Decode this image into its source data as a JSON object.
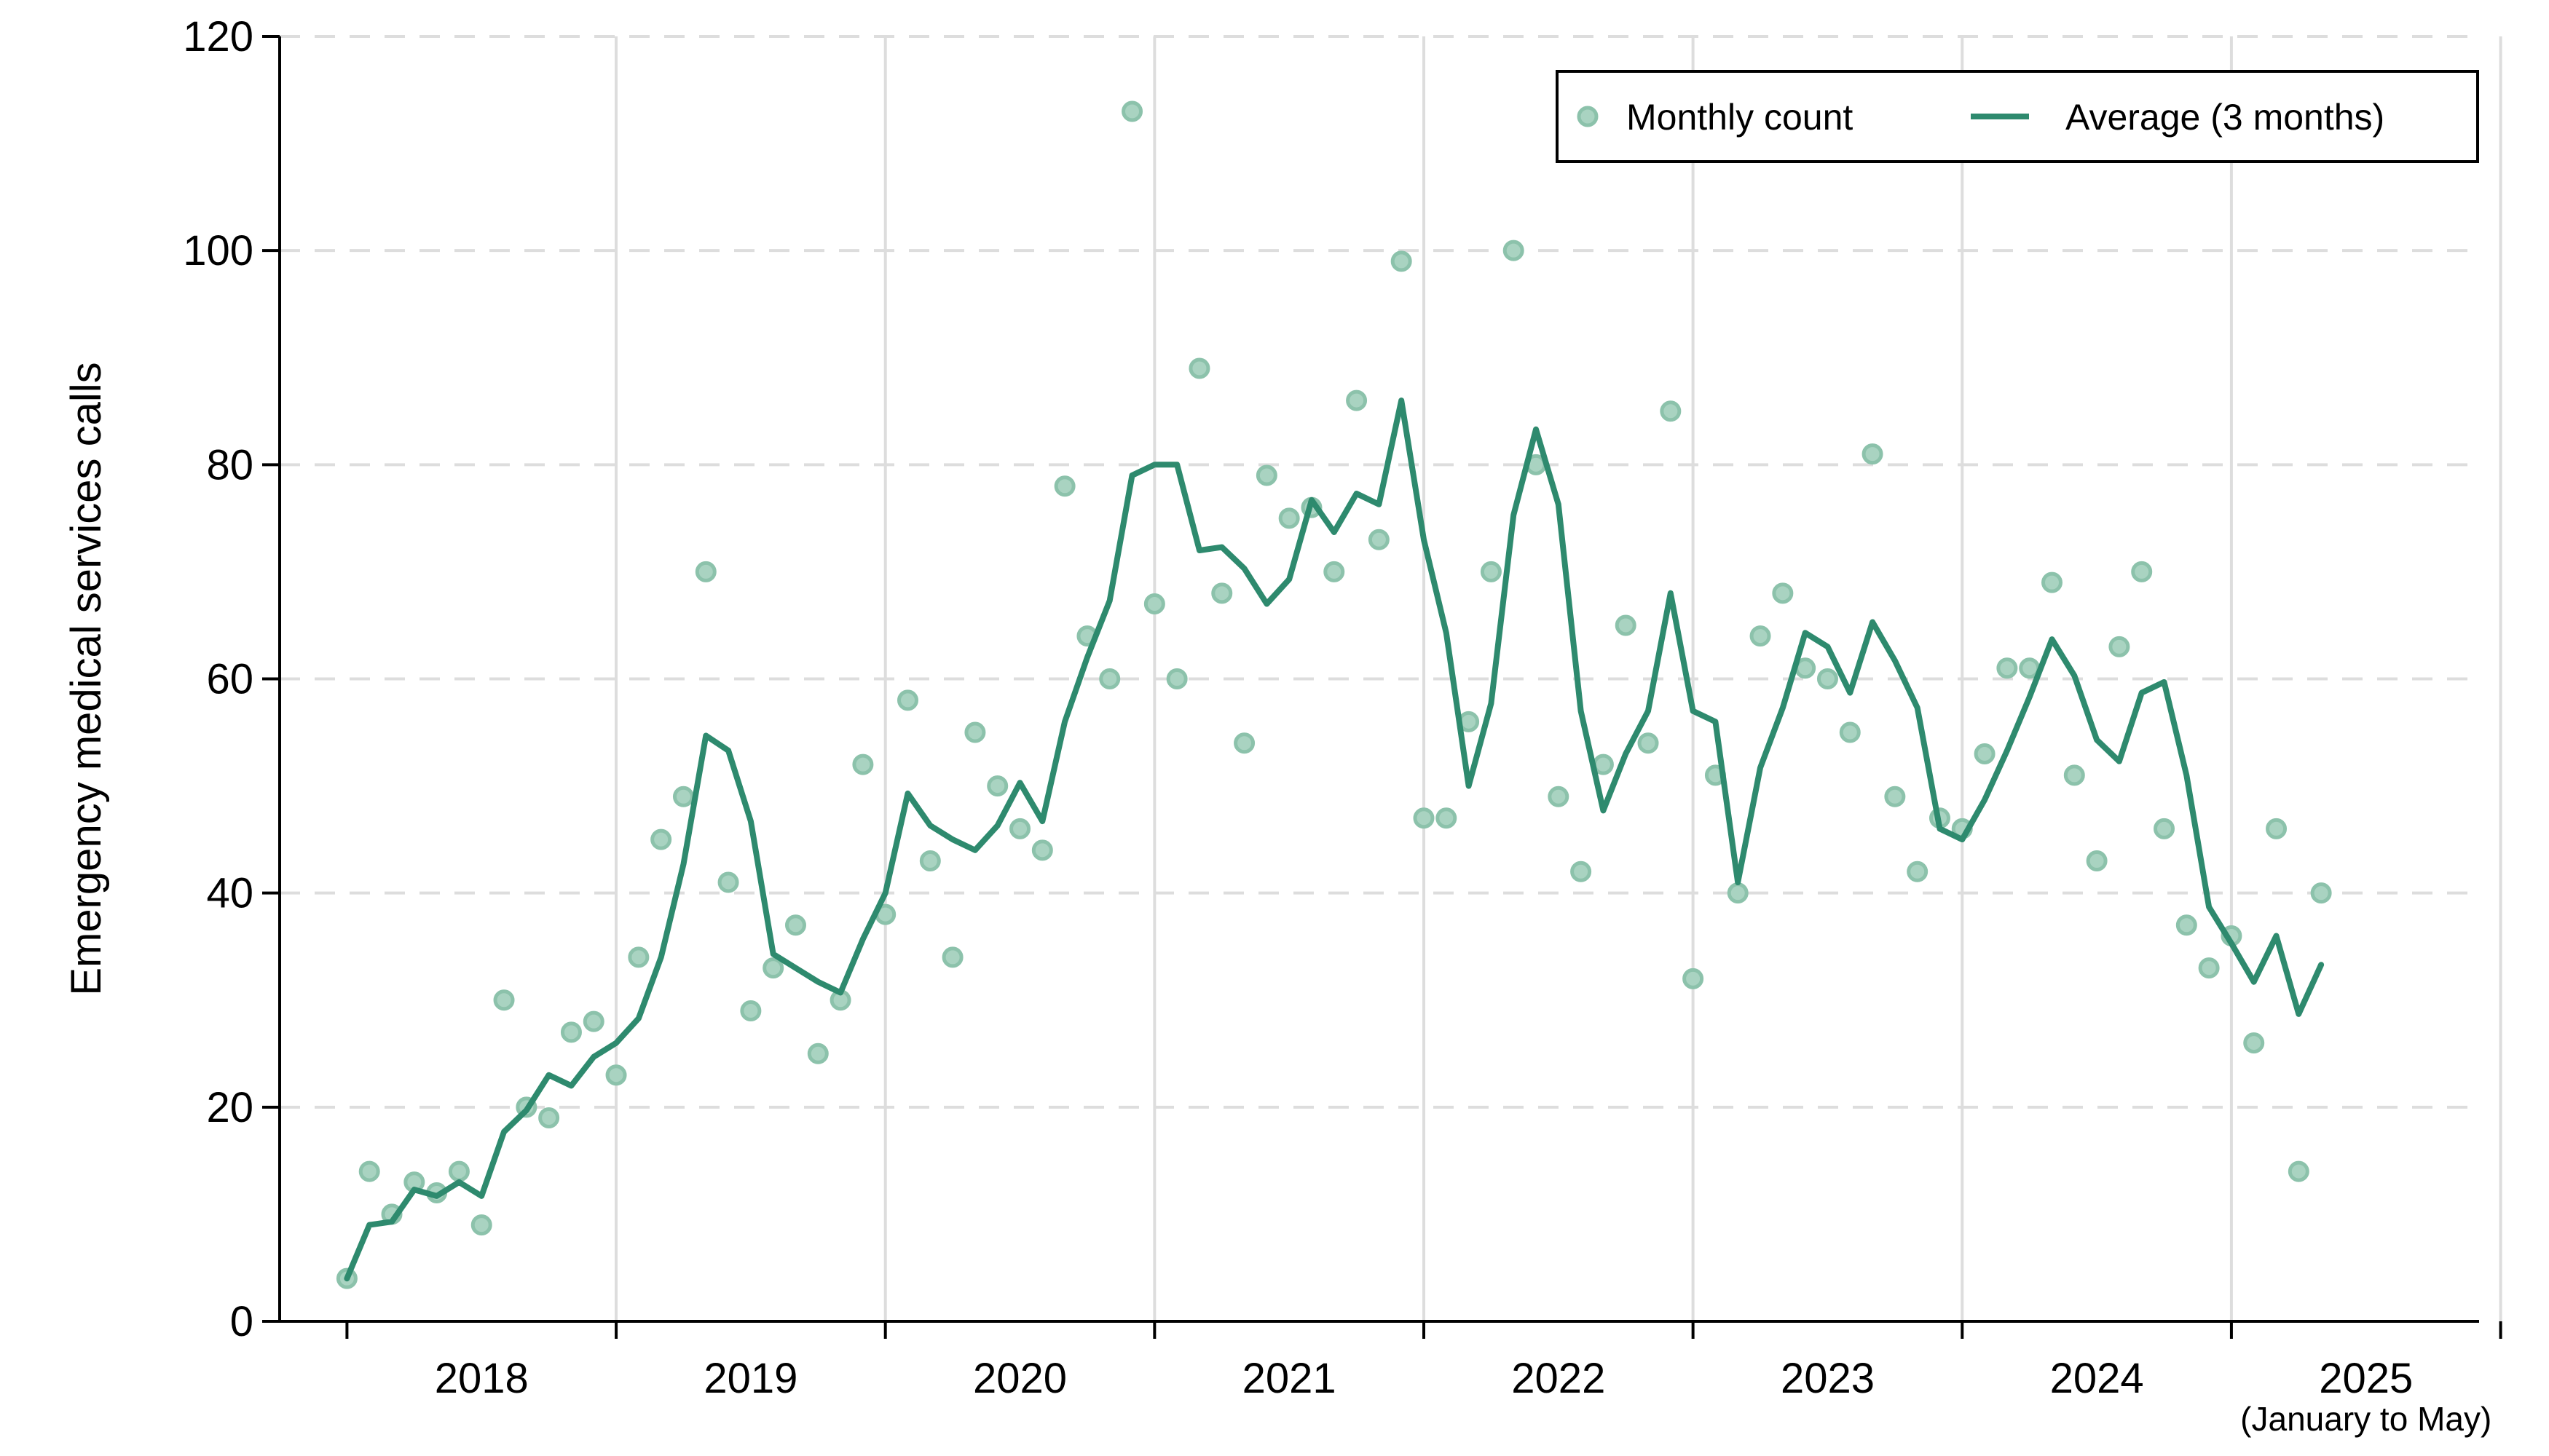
{
  "chart_data": {
    "type": "line",
    "ylabel": "Emergency medical services calls",
    "ylim": [
      0,
      120
    ],
    "yticks": [
      0,
      20,
      40,
      60,
      80,
      100,
      120
    ],
    "xlim": [
      2017.75,
      2025.92
    ],
    "years": [
      "2018",
      "2019",
      "2020",
      "2021",
      "2022",
      "2023",
      "2024",
      "2025"
    ],
    "year_note": "(January to May)",
    "grid": true,
    "legend_position": "top-right",
    "colors": {
      "points": "#a9d3c1",
      "point_stroke": "#8cc2ab",
      "line": "#2e8a6e",
      "grid": "#dddddd",
      "legend_border": "#000000"
    },
    "legend": {
      "points_label": "Monthly count",
      "line_label": "Average (3 months)"
    },
    "series": [
      {
        "name": "Monthly count",
        "kind": "points",
        "values": [
          4,
          14,
          10,
          13,
          12,
          14,
          9,
          30,
          20,
          19,
          27,
          28,
          23,
          34,
          45,
          49,
          70,
          41,
          29,
          33,
          37,
          25,
          30,
          52,
          38,
          58,
          43,
          34,
          55,
          50,
          46,
          44,
          78,
          64,
          60,
          113,
          67,
          60,
          89,
          68,
          54,
          79,
          75,
          76,
          70,
          86,
          73,
          99,
          47,
          47,
          56,
          70,
          100,
          80,
          49,
          42,
          52,
          65,
          54,
          85,
          32,
          51,
          40,
          64,
          68,
          61,
          60,
          55,
          81,
          49,
          42,
          47,
          46,
          53,
          61,
          61,
          69,
          51,
          43,
          63,
          70,
          46,
          37,
          33,
          36,
          26,
          46,
          14,
          40
        ]
      },
      {
        "name": "Average (3 months)",
        "kind": "line",
        "values": [
          4,
          9,
          9.3,
          12.3,
          11.7,
          13,
          11.7,
          17.7,
          19.7,
          23,
          22,
          24.7,
          26,
          28.3,
          34,
          42.7,
          54.7,
          53.3,
          46.7,
          34.3,
          33,
          31.7,
          30.7,
          35.7,
          40,
          49.3,
          46.3,
          45,
          44,
          46.3,
          50.3,
          46.7,
          56,
          62,
          67.3,
          79,
          80,
          80,
          72,
          72.3,
          70.3,
          67,
          69.3,
          76.7,
          73.7,
          77.3,
          76.3,
          86,
          73,
          64.3,
          50,
          57.7,
          75.3,
          83.3,
          76.3,
          57,
          47.7,
          53,
          57,
          68,
          57,
          56,
          41,
          51.7,
          57.3,
          64.3,
          63,
          58.7,
          65.3,
          61.7,
          57.3,
          46,
          45,
          48.7,
          53.3,
          58.3,
          63.7,
          60.3,
          54.3,
          52.3,
          58.7,
          59.7,
          51,
          38.7,
          35.3,
          31.7,
          36,
          28.7,
          33.3
        ]
      }
    ]
  }
}
